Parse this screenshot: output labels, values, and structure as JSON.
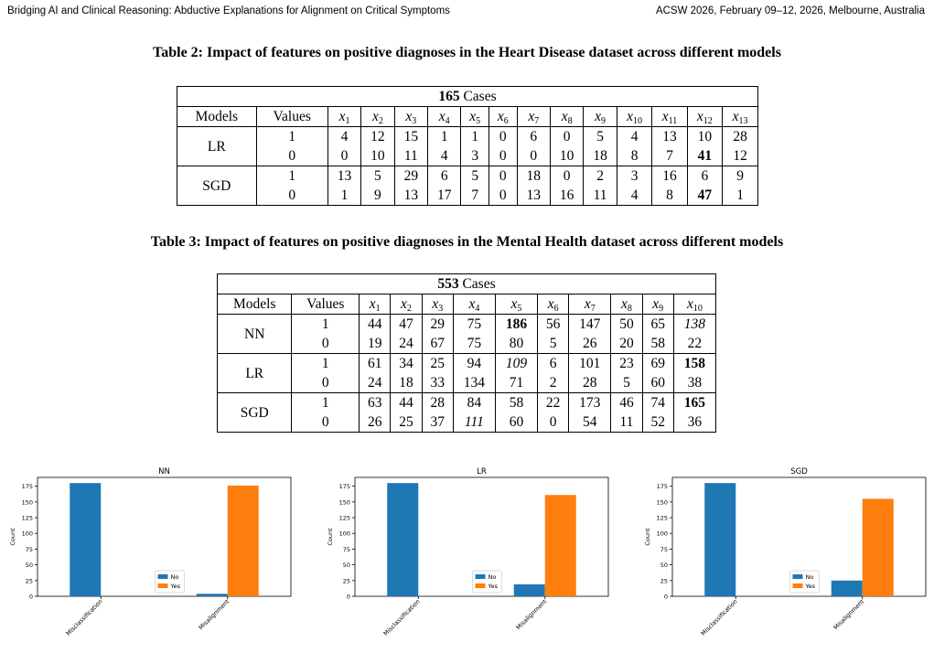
{
  "header": {
    "left": "Bridging AI and Clinical Reasoning: Abductive Explanations for Alignment on Critical Symptoms",
    "right": "ACSW 2026, February 09–12, 2026, Melbourne, Australia"
  },
  "table2": {
    "caption": "Table 2: Impact of features on positive diagnoses in the Heart Disease dataset across different models",
    "cases_count": "165",
    "cases_word": "Cases",
    "col_models": "Models",
    "col_values": "Values",
    "features": [
      "x",
      "x",
      "x",
      "x",
      "x",
      "x",
      "x",
      "x",
      "x",
      "x",
      "x",
      "x",
      "x"
    ],
    "feature_subs": [
      "1",
      "2",
      "3",
      "4",
      "5",
      "6",
      "7",
      "8",
      "9",
      "10",
      "11",
      "12",
      "13"
    ],
    "models": [
      {
        "name": "LR",
        "rows": [
          {
            "value": "1",
            "cells": [
              "4",
              "12",
              "15",
              "1",
              "1",
              "0",
              "6",
              "0",
              "5",
              "4",
              "13",
              "10",
              "28"
            ]
          },
          {
            "value": "0",
            "cells": [
              "0",
              "10",
              "11",
              "4",
              "3",
              "0",
              "0",
              "10",
              "18",
              "8",
              "7",
              "41",
              "12"
            ]
          }
        ]
      },
      {
        "name": "SGD",
        "rows": [
          {
            "value": "1",
            "cells": [
              "13",
              "5",
              "29",
              "6",
              "5",
              "0",
              "18",
              "0",
              "2",
              "3",
              "16",
              "6",
              "9"
            ]
          },
          {
            "value": "0",
            "cells": [
              "1",
              "9",
              "13",
              "17",
              "7",
              "0",
              "13",
              "16",
              "11",
              "4",
              "8",
              "47",
              "1"
            ]
          }
        ]
      }
    ]
  },
  "table3": {
    "caption": "Table 3: Impact of features on positive diagnoses in the Mental Health dataset across different models",
    "cases_count": "553",
    "cases_word": "Cases",
    "col_models": "Models",
    "col_values": "Values",
    "features": [
      "x",
      "x",
      "x",
      "x",
      "x",
      "x",
      "x",
      "x",
      "x",
      "x"
    ],
    "feature_subs": [
      "1",
      "2",
      "3",
      "4",
      "5",
      "6",
      "7",
      "8",
      "9",
      "10"
    ],
    "models": [
      {
        "name": "NN",
        "rows": [
          {
            "value": "1",
            "cells": [
              "44",
              "47",
              "29",
              "75",
              "186",
              "56",
              "147",
              "50",
              "65",
              "138"
            ]
          },
          {
            "value": "0",
            "cells": [
              "19",
              "24",
              "67",
              "75",
              "80",
              "5",
              "26",
              "20",
              "58",
              "22"
            ]
          }
        ]
      },
      {
        "name": "LR",
        "rows": [
          {
            "value": "1",
            "cells": [
              "61",
              "34",
              "25",
              "94",
              "109",
              "6",
              "101",
              "23",
              "69",
              "158"
            ]
          },
          {
            "value": "0",
            "cells": [
              "24",
              "18",
              "33",
              "134",
              "71",
              "2",
              "28",
              "5",
              "60",
              "38"
            ]
          }
        ]
      },
      {
        "name": "SGD",
        "rows": [
          {
            "value": "1",
            "cells": [
              "63",
              "44",
              "28",
              "84",
              "58",
              "22",
              "173",
              "46",
              "74",
              "165"
            ]
          },
          {
            "value": "0",
            "cells": [
              "26",
              "25",
              "37",
              "111",
              "60",
              "0",
              "54",
              "11",
              "52",
              "36"
            ]
          }
        ]
      }
    ]
  },
  "chart_data": [
    {
      "type": "bar",
      "title": "NN",
      "categories": [
        "Misclassification",
        "Misalignment"
      ],
      "series": [
        {
          "name": "No",
          "values": [
            180,
            4
          ]
        },
        {
          "name": "Yes",
          "values": [
            0,
            176
          ]
        }
      ],
      "xlabel": "",
      "ylabel": "Count",
      "ylim": [
        0,
        189
      ],
      "yticks": [
        0,
        25,
        50,
        75,
        100,
        125,
        150,
        175
      ],
      "legend": "lower-center",
      "colors": {
        "No": "#1f77b4",
        "Yes": "#ff7f0e"
      }
    },
    {
      "type": "bar",
      "title": "LR",
      "categories": [
        "Misclassification",
        "Misalignment"
      ],
      "series": [
        {
          "name": "No",
          "values": [
            180,
            19
          ]
        },
        {
          "name": "Yes",
          "values": [
            0,
            161
          ]
        }
      ],
      "xlabel": "",
      "ylabel": "Count",
      "ylim": [
        0,
        189
      ],
      "yticks": [
        0,
        25,
        50,
        75,
        100,
        125,
        150,
        175
      ],
      "legend": "lower-center",
      "colors": {
        "No": "#1f77b4",
        "Yes": "#ff7f0e"
      }
    },
    {
      "type": "bar",
      "title": "SGD",
      "categories": [
        "Misclassification",
        "Misalignment"
      ],
      "series": [
        {
          "name": "No",
          "values": [
            180,
            25
          ]
        },
        {
          "name": "Yes",
          "values": [
            0,
            155
          ]
        }
      ],
      "xlabel": "",
      "ylabel": "Count",
      "ylim": [
        0,
        189
      ],
      "yticks": [
        0,
        25,
        50,
        75,
        100,
        125,
        150,
        175
      ],
      "legend": "lower-center",
      "colors": {
        "No": "#1f77b4",
        "Yes": "#ff7f0e"
      }
    }
  ]
}
